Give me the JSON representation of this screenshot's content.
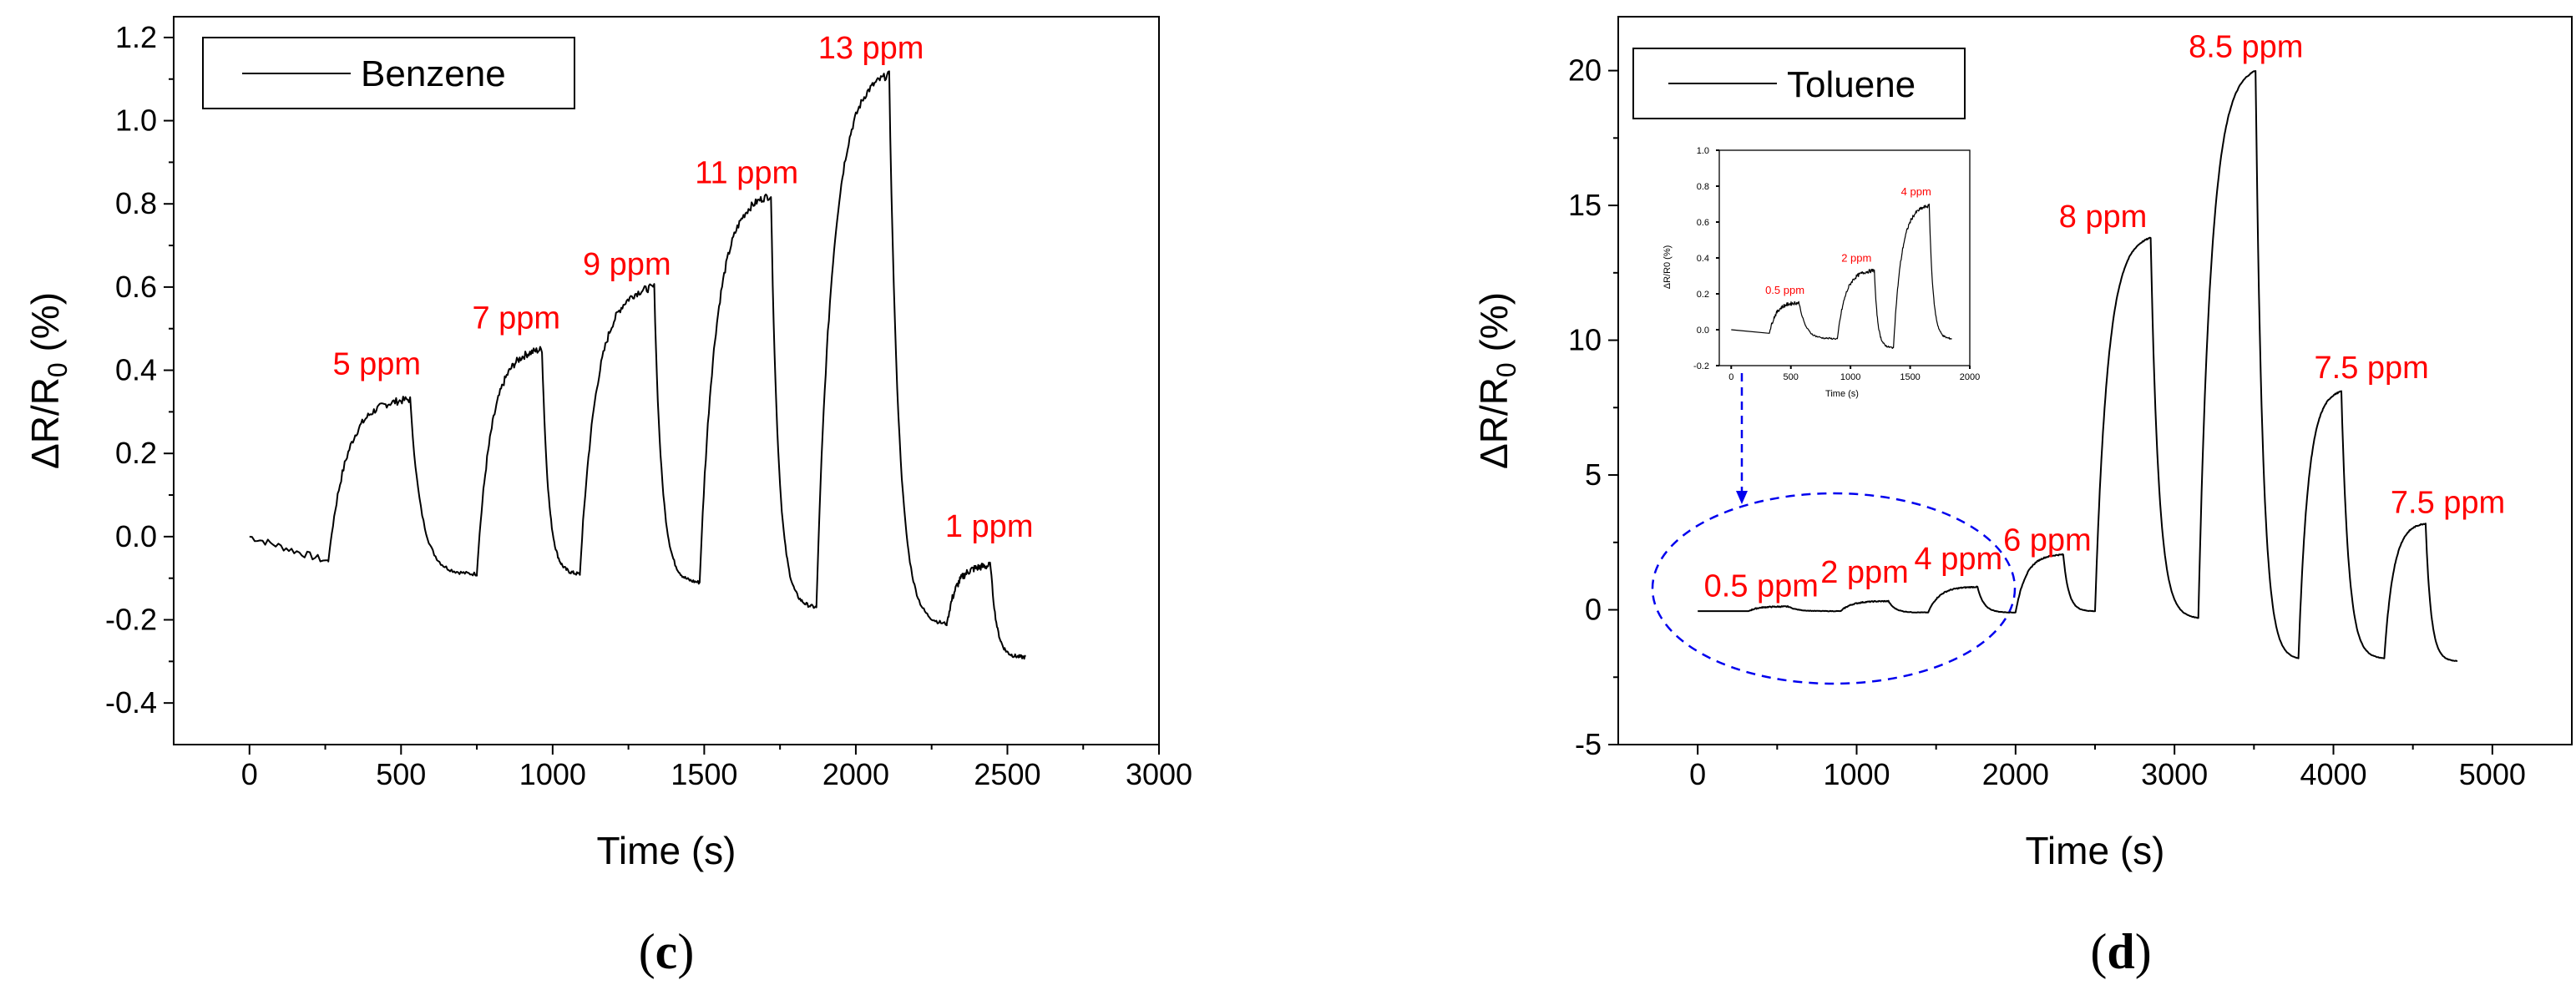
{
  "chart_data": [
    {
      "type": "line",
      "panel_label": "c",
      "legend": "Benzene",
      "xlabel": "Time (s)",
      "ylabel_main": "ΔR/R",
      "ylabel_sub": "0",
      "ylabel_unit": " (%)",
      "xlim": [
        -250,
        3000
      ],
      "ylim": [
        -0.5,
        1.25
      ],
      "xticks": [
        0,
        500,
        1000,
        1500,
        2000,
        2500,
        3000
      ],
      "yticks": [
        -0.4,
        -0.2,
        0.0,
        0.2,
        0.4,
        0.6,
        0.8,
        1.0,
        1.2
      ],
      "series": [
        {
          "name": "Benzene",
          "segments": [
            {
              "t_on": 0,
              "t_off": 260,
              "base": 0.0,
              "base_end": -0.06
            },
            {
              "t_on": 260,
              "t_off": 530,
              "base": -0.06,
              "peak": 0.33
            },
            {
              "t_on": 750,
              "t_off": 965,
              "base": -0.09,
              "peak": 0.45
            },
            {
              "t_on": 1090,
              "t_off": 1335,
              "base": -0.09,
              "peak": 0.6
            },
            {
              "t_on": 1485,
              "t_off": 1720,
              "base": -0.11,
              "peak": 0.82
            },
            {
              "t_on": 1870,
              "t_off": 2110,
              "base": -0.17,
              "peak": 1.11
            },
            {
              "t_on": 2300,
              "t_off": 2445,
              "base": -0.21,
              "peak": -0.07
            }
          ],
          "end_time": 2560,
          "end_value": -0.29
        }
      ],
      "annotations": [
        {
          "text": "5 ppm",
          "x": 420,
          "y": 0.39
        },
        {
          "text": "7 ppm",
          "x": 880,
          "y": 0.5
        },
        {
          "text": "9 ppm",
          "x": 1245,
          "y": 0.63
        },
        {
          "text": "11 ppm",
          "x": 1640,
          "y": 0.85
        },
        {
          "text": "13 ppm",
          "x": 2050,
          "y": 1.15
        },
        {
          "text": "1 ppm",
          "x": 2440,
          "y": 0.0
        }
      ]
    },
    {
      "type": "line",
      "panel_label": "d",
      "legend": "Toluene",
      "xlabel": "Time (s)",
      "ylabel_main": "ΔR/R",
      "ylabel_sub": "0",
      "ylabel_unit": " (%)",
      "xlim": [
        -500,
        5500
      ],
      "ylim": [
        -5,
        22
      ],
      "xticks": [
        0,
        1000,
        2000,
        3000,
        4000,
        5000
      ],
      "yticks": [
        -5,
        0,
        5,
        10,
        15,
        20
      ],
      "series": [
        {
          "name": "Toluene",
          "segments": [
            {
              "t_on": 320,
              "t_off": 570,
              "base": -0.05,
              "peak": 0.12
            },
            {
              "t_on": 900,
              "t_off": 1200,
              "base": -0.05,
              "peak": 0.32
            },
            {
              "t_on": 1450,
              "t_off": 1760,
              "base": -0.1,
              "peak": 0.85
            },
            {
              "t_on": 2000,
              "t_off": 2300,
              "base": -0.1,
              "peak": 2.05
            },
            {
              "t_on": 2500,
              "t_off": 2850,
              "base": -0.05,
              "peak": 13.8
            },
            {
              "t_on": 3150,
              "t_off": 3510,
              "base": -0.3,
              "peak": 20.0
            },
            {
              "t_on": 3780,
              "t_off": 4050,
              "base": -1.8,
              "peak": 8.1
            },
            {
              "t_on": 4320,
              "t_off": 4580,
              "base": -1.8,
              "peak": 3.2
            }
          ],
          "end_time": 4780,
          "end_value": -1.9
        }
      ],
      "annotations": [
        {
          "text": "0.5 ppm",
          "x": 400,
          "y": 0.5
        },
        {
          "text": "2 ppm",
          "x": 1050,
          "y": 1.0
        },
        {
          "text": "4 ppm",
          "x": 1640,
          "y": 1.5
        },
        {
          "text": "6 ppm",
          "x": 2200,
          "y": 2.2
        },
        {
          "text": "8 ppm",
          "x": 2550,
          "y": 14.2
        },
        {
          "text": "8.5 ppm",
          "x": 3450,
          "y": 20.5
        },
        {
          "text": "7.5 ppm",
          "x": 4240,
          "y": 8.6
        },
        {
          "text": "7.5 ppm",
          "x": 4720,
          "y": 3.6
        }
      ],
      "inset": {
        "xlim": [
          -100,
          2000
        ],
        "ylim": [
          -0.2,
          1.0
        ],
        "xticks": [
          0,
          500,
          1000,
          1500,
          2000
        ],
        "yticks": [
          -0.2,
          0.0,
          0.2,
          0.4,
          0.6,
          0.8,
          1.0
        ],
        "yticklabels": [
          "-0.2",
          "0.0",
          "0.2",
          "0.4",
          "0.6",
          "0.8",
          "1.0"
        ],
        "xlabel": "Time (s)",
        "ylabel": "ΔR/R0 (%)",
        "segments": [
          {
            "t_on": 320,
            "t_off": 570,
            "base": -0.02,
            "peak": 0.15
          },
          {
            "t_on": 890,
            "t_off": 1200,
            "base": -0.05,
            "peak": 0.33
          },
          {
            "t_on": 1360,
            "t_off": 1660,
            "base": -0.1,
            "peak": 0.69
          }
        ],
        "start": {
          "t": 0,
          "v": 0.0
        },
        "end_time": 1850,
        "end_value": -0.05,
        "annotations": [
          {
            "text": "0.5 ppm",
            "x": 450,
            "y": 0.2
          },
          {
            "text": "2 ppm",
            "x": 1050,
            "y": 0.38
          },
          {
            "text": "4 ppm",
            "x": 1550,
            "y": 0.75
          }
        ]
      }
    }
  ]
}
